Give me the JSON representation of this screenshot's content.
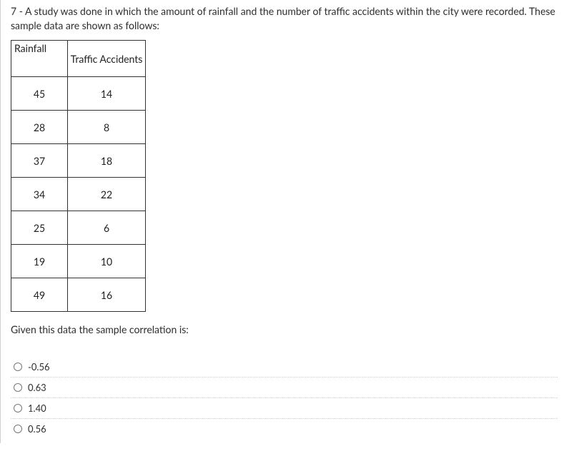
{
  "question": {
    "prefix": "7 - ",
    "body": "A study was done in which the amount of rainfall and the number of traffic accidents within the city were recorded. These sample data are shown as follows:"
  },
  "table": {
    "headers": {
      "col1": "Rainfall",
      "col2": "Traffic Accidents"
    },
    "rows": [
      {
        "c1": "45",
        "c2": "14"
      },
      {
        "c1": "28",
        "c2": "8"
      },
      {
        "c1": "37",
        "c2": "18"
      },
      {
        "c1": "34",
        "c2": "22"
      },
      {
        "c1": "25",
        "c2": "6"
      },
      {
        "c1": "19",
        "c2": "10"
      },
      {
        "c1": "49",
        "c2": "16"
      }
    ]
  },
  "followup": "Given this data the sample correlation is:",
  "options": [
    {
      "label": "-0.56"
    },
    {
      "label": "0.63"
    },
    {
      "label": "1.40"
    },
    {
      "label": "0.56"
    }
  ],
  "colors": {
    "text": "#2e2e2e",
    "border": "#333333",
    "option_divider": "#cfcfcf",
    "background": "#ffffff"
  },
  "typography": {
    "body_fontsize": 14,
    "option_fontsize": 13
  }
}
